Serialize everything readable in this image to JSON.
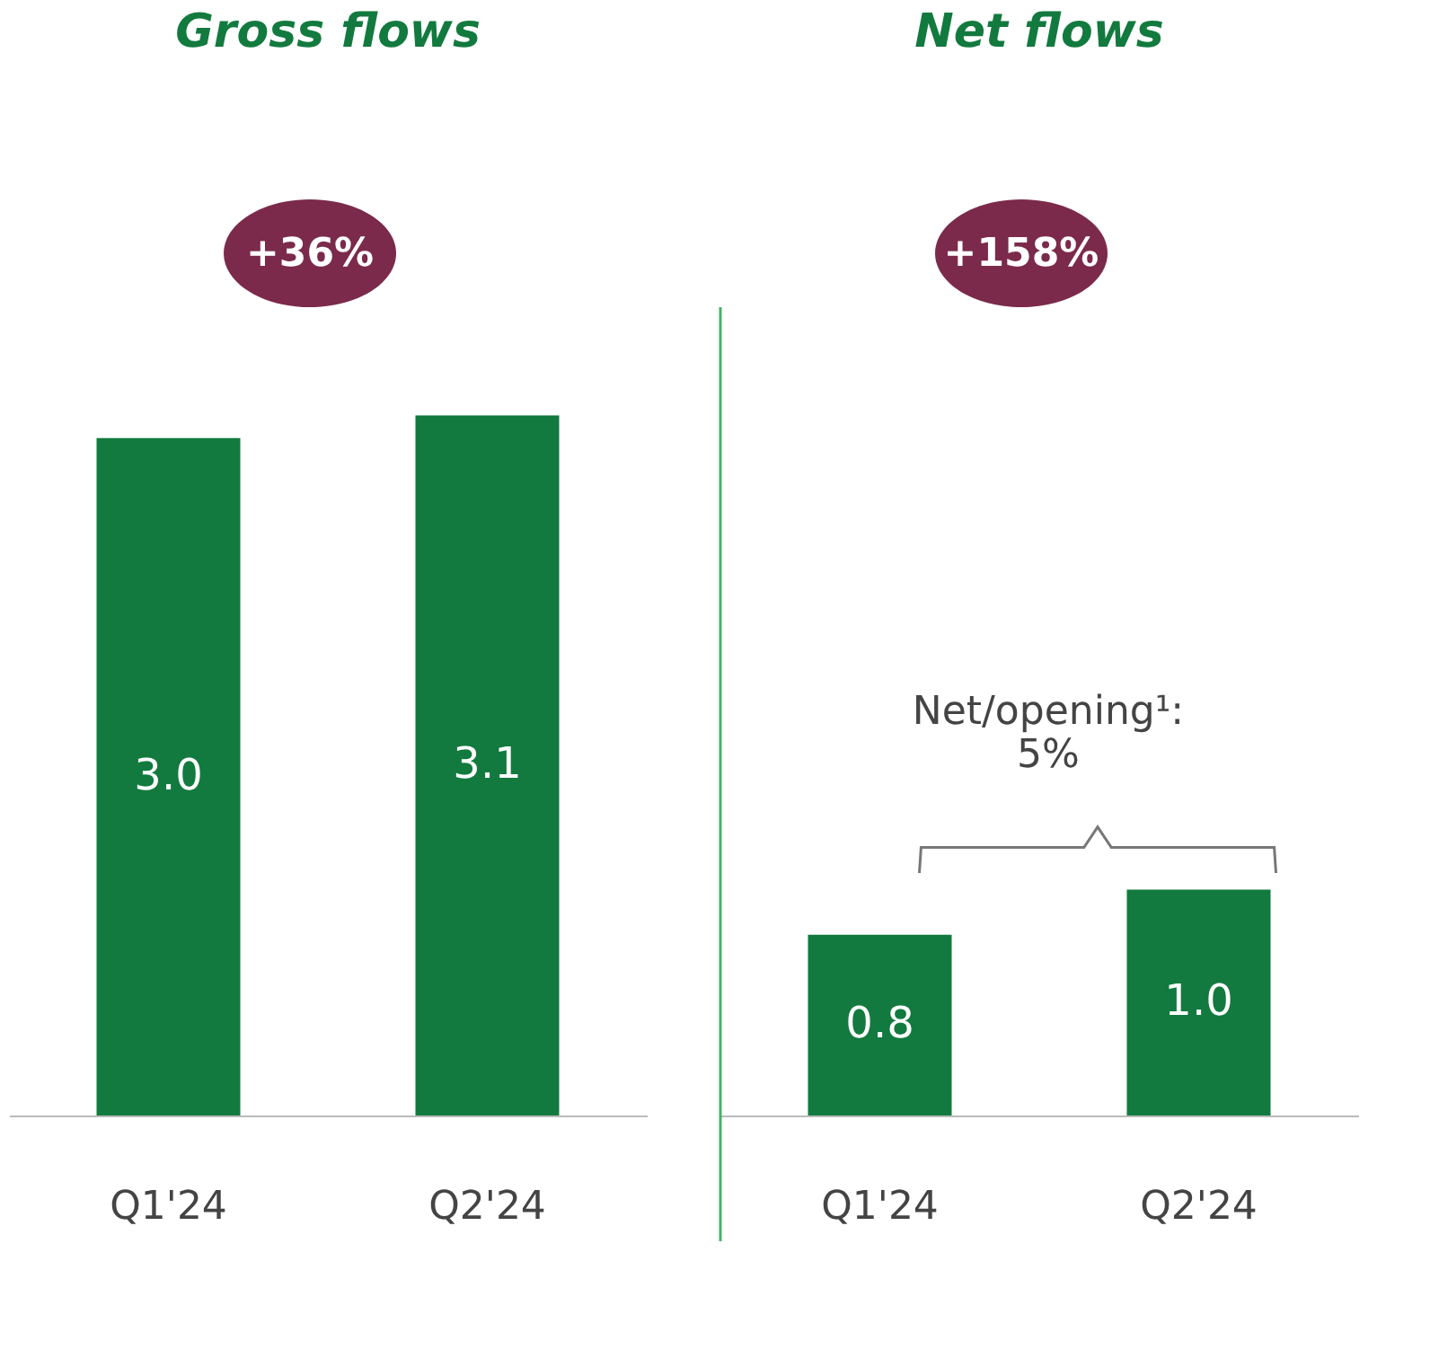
{
  "chart_data": [
    {
      "type": "bar",
      "title": "Gross flows",
      "categories": [
        "Q1'24",
        "Q2'24"
      ],
      "values": [
        3.0,
        3.1
      ],
      "color": "#127a3e",
      "value_labels": [
        "3.0",
        "3.1"
      ],
      "annotations": [
        "+36%"
      ]
    },
    {
      "type": "bar",
      "title": "Net flows",
      "categories": [
        "Q1'24",
        "Q2'24"
      ],
      "values": [
        0.8,
        1.0
      ],
      "color": "#127a3e",
      "value_labels": [
        "0.8",
        "1.0"
      ],
      "annotations": [
        "+158%",
        "Net/opening¹:\n5%"
      ]
    }
  ]
}
